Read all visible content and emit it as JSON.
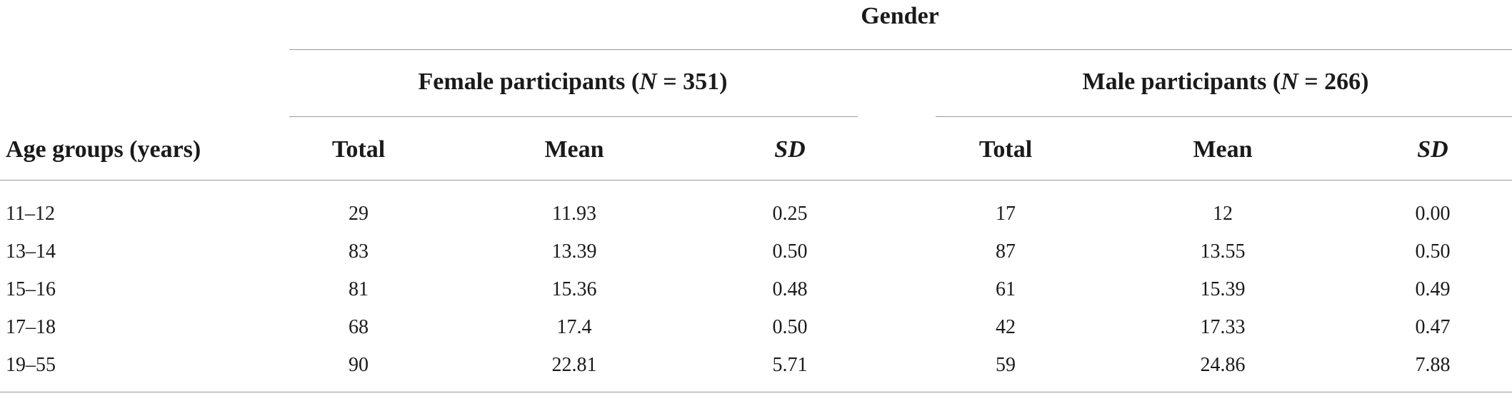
{
  "table": {
    "header": {
      "group_label": "Gender",
      "row_header": "Age groups (years)",
      "female_group": {
        "prefix": "Female participants (",
        "n_symbol": "N",
        "suffix": " = 351)"
      },
      "male_group": {
        "prefix": "Male participants (",
        "n_symbol": "N",
        "suffix": " = 266)"
      },
      "columns": [
        "Total",
        "Mean",
        "SD",
        "Total",
        "Mean",
        "SD"
      ]
    },
    "rows": [
      {
        "age": "11–12",
        "female": {
          "total": "29",
          "mean": "11.93",
          "sd": "0.25"
        },
        "male": {
          "total": "17",
          "mean": "12",
          "sd": "0.00"
        }
      },
      {
        "age": "13–14",
        "female": {
          "total": "83",
          "mean": "13.39",
          "sd": "0.50"
        },
        "male": {
          "total": "87",
          "mean": "13.55",
          "sd": "0.50"
        }
      },
      {
        "age": "15–16",
        "female": {
          "total": "81",
          "mean": "15.36",
          "sd": "0.48"
        },
        "male": {
          "total": "61",
          "mean": "15.39",
          "sd": "0.49"
        }
      },
      {
        "age": "17–18",
        "female": {
          "total": "68",
          "mean": "17.4",
          "sd": "0.50"
        },
        "male": {
          "total": "42",
          "mean": "17.33",
          "sd": "0.47"
        }
      },
      {
        "age": "19–55",
        "female": {
          "total": "90",
          "mean": "22.81",
          "sd": "5.71"
        },
        "male": {
          "total": "59",
          "mean": "24.86",
          "sd": "7.88"
        }
      }
    ]
  }
}
